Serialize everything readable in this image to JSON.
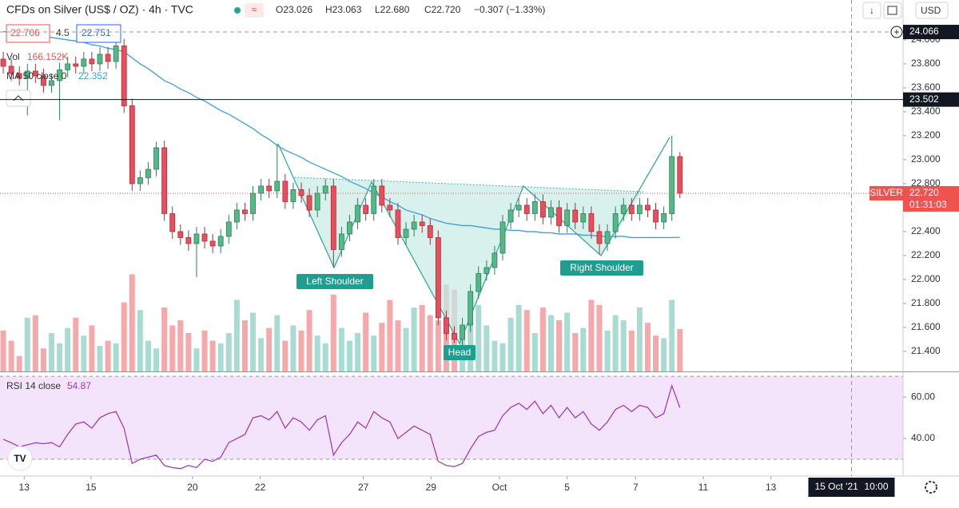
{
  "header": {
    "title": "CFDs on Silver (US$ / OZ) · 4h · TVC",
    "ohlc": [
      "O23.026",
      "H23.063",
      "L22.680",
      "C22.720",
      "−0.307 (−1.33%)"
    ],
    "currency": "USD"
  },
  "overlay": {
    "bid": "22.706",
    "spread": "4.5",
    "ask": "22.751",
    "volume_name": "Vol",
    "volume_readout": "166.152K"
  },
  "annotations": [
    "Left Shoulder",
    "Head",
    "Right Shoulder"
  ],
  "chart_data": [
    {
      "type": "candlestick",
      "up_color": "#53b987",
      "down_color": "#eb4d5c",
      "volume_up_color": "#a8dcd3",
      "volume_down_color": "#f5a9ab",
      "open": [
        23.84,
        23.78,
        23.72,
        23.68,
        23.74,
        23.7,
        23.62,
        23.66,
        23.75,
        23.8,
        23.78,
        23.84,
        23.8,
        23.88,
        23.82,
        23.95,
        23.45,
        22.8,
        22.85,
        22.92,
        23.1,
        22.55,
        22.4,
        22.35,
        22.3,
        22.38,
        22.32,
        22.28,
        22.36,
        22.48,
        22.58,
        22.55,
        22.72,
        22.78,
        22.74,
        22.82,
        22.65,
        22.75,
        22.7,
        22.58,
        22.72,
        22.78,
        22.25,
        22.38,
        22.48,
        22.62,
        22.55,
        22.78,
        22.62,
        22.58,
        22.35,
        22.42,
        22.48,
        22.45,
        22.35,
        21.68,
        21.55,
        21.5,
        21.62,
        21.9,
        22.05,
        22.1,
        22.22,
        22.48,
        22.58,
        22.62,
        22.55,
        22.65,
        22.52,
        22.6,
        22.45,
        22.58,
        22.48,
        22.55,
        22.4,
        22.3,
        22.4,
        22.55,
        22.62,
        22.55,
        22.62,
        22.58,
        22.48,
        22.55,
        23.026
      ],
      "high": [
        23.9,
        23.84,
        23.78,
        23.8,
        23.8,
        23.76,
        23.72,
        23.81,
        23.86,
        23.86,
        23.9,
        23.9,
        23.94,
        23.94,
        24.0,
        24.01,
        23.51,
        22.91,
        22.98,
        23.15,
        23.16,
        22.61,
        22.46,
        22.41,
        22.44,
        22.44,
        22.38,
        22.42,
        22.54,
        22.64,
        22.64,
        22.78,
        22.84,
        22.84,
        23.13,
        22.88,
        22.81,
        22.81,
        22.76,
        22.78,
        22.84,
        22.84,
        22.44,
        22.54,
        22.68,
        22.68,
        22.84,
        22.84,
        22.68,
        22.64,
        22.48,
        22.54,
        22.54,
        22.51,
        22.41,
        21.74,
        21.61,
        21.68,
        21.96,
        22.11,
        22.16,
        22.28,
        22.54,
        22.64,
        22.68,
        22.68,
        22.71,
        22.71,
        22.66,
        22.66,
        22.64,
        22.64,
        22.61,
        22.61,
        22.46,
        22.46,
        22.61,
        22.68,
        22.68,
        22.68,
        22.68,
        22.64,
        22.61,
        23.2,
        23.063
      ],
      "low": [
        23.72,
        23.66,
        23.62,
        23.37,
        23.64,
        23.56,
        23.56,
        23.33,
        23.69,
        23.72,
        23.72,
        23.74,
        23.74,
        23.76,
        23.76,
        23.39,
        22.74,
        22.74,
        22.79,
        22.86,
        22.49,
        22.34,
        22.29,
        22.24,
        22.02,
        22.26,
        22.22,
        22.22,
        22.3,
        22.42,
        22.49,
        22.49,
        22.66,
        22.68,
        22.68,
        22.59,
        22.59,
        22.64,
        22.52,
        22.52,
        22.66,
        22.1,
        22.19,
        22.32,
        22.42,
        22.49,
        22.49,
        22.56,
        22.52,
        22.29,
        22.29,
        22.36,
        22.39,
        22.29,
        21.62,
        21.49,
        21.47,
        21.44,
        21.56,
        21.84,
        21.99,
        22.04,
        22.16,
        22.42,
        22.52,
        22.49,
        22.49,
        22.46,
        22.46,
        22.39,
        22.39,
        22.42,
        22.42,
        22.34,
        22.21,
        22.24,
        22.34,
        22.49,
        22.49,
        22.49,
        22.52,
        22.42,
        22.42,
        22.49,
        22.68
      ],
      "close": [
        23.78,
        23.72,
        23.68,
        23.74,
        23.7,
        23.62,
        23.66,
        23.75,
        23.8,
        23.78,
        23.84,
        23.8,
        23.88,
        23.82,
        23.95,
        23.45,
        22.8,
        22.85,
        22.92,
        23.1,
        22.55,
        22.4,
        22.35,
        22.3,
        22.38,
        22.32,
        22.28,
        22.36,
        22.48,
        22.58,
        22.55,
        22.72,
        22.78,
        22.74,
        22.82,
        22.65,
        22.75,
        22.7,
        22.58,
        22.72,
        22.78,
        22.25,
        22.38,
        22.48,
        22.62,
        22.55,
        22.78,
        22.62,
        22.58,
        22.35,
        22.42,
        22.48,
        22.45,
        22.35,
        21.68,
        21.55,
        21.5,
        21.62,
        21.9,
        22.05,
        22.1,
        22.22,
        22.48,
        22.58,
        22.62,
        22.55,
        22.65,
        22.52,
        22.6,
        22.45,
        22.58,
        22.48,
        22.55,
        22.4,
        22.3,
        22.4,
        22.55,
        22.62,
        22.55,
        22.62,
        22.58,
        22.48,
        22.55,
        23.026,
        22.72
      ],
      "volume": [
        160,
        120,
        60,
        210,
        220,
        90,
        150,
        110,
        170,
        210,
        140,
        180,
        100,
        120,
        110,
        270,
        380,
        240,
        120,
        90,
        250,
        180,
        200,
        150,
        90,
        160,
        120,
        110,
        150,
        280,
        200,
        230,
        130,
        170,
        220,
        120,
        180,
        160,
        240,
        140,
        110,
        300,
        170,
        120,
        150,
        230,
        140,
        190,
        280,
        200,
        170,
        250,
        260,
        220,
        200,
        340,
        320,
        180,
        200,
        260,
        180,
        120,
        110,
        210,
        260,
        240,
        150,
        250,
        220,
        200,
        230,
        150,
        170,
        280,
        260,
        160,
        220,
        200,
        160,
        250,
        190,
        140,
        130,
        280,
        166.152
      ],
      "series": [
        {
          "name": "MA 50 close 0",
          "color": "#3d9fdc",
          "values": [
            24.07,
            24.06,
            24.06,
            24.05,
            24.04,
            24.03,
            24.02,
            24.01,
            24.0,
            23.99,
            23.98,
            23.96,
            23.95,
            23.93,
            23.92,
            23.9,
            23.85,
            23.8,
            23.76,
            23.71,
            23.66,
            23.63,
            23.59,
            23.56,
            23.52,
            23.49,
            23.45,
            23.41,
            23.38,
            23.34,
            23.3,
            23.26,
            23.21,
            23.17,
            23.12,
            23.08,
            23.05,
            23.02,
            22.98,
            22.95,
            22.92,
            22.89,
            22.86,
            22.82,
            22.79,
            22.76,
            22.72,
            22.69,
            22.65,
            22.62,
            22.58,
            22.56,
            22.54,
            22.51,
            22.49,
            22.47,
            22.46,
            22.45,
            22.45,
            22.44,
            22.43,
            22.42,
            22.42,
            22.41,
            22.41,
            22.4,
            22.4,
            22.39,
            22.39,
            22.38,
            22.38,
            22.38,
            22.37,
            22.37,
            22.36,
            22.36,
            22.36,
            22.36,
            22.35,
            22.35,
            22.35,
            22.35,
            22.35,
            22.35,
            22.352
          ]
        }
      ],
      "xlim": [
        -0.4,
        111.7
      ],
      "xticks": [
        {
          "value": 2.6,
          "label": "13"
        },
        {
          "value": 10.9,
          "label": "15"
        },
        {
          "value": 23.5,
          "label": "20"
        },
        {
          "value": 31.9,
          "label": "22"
        },
        {
          "value": 44.7,
          "label": "27"
        },
        {
          "value": 53.1,
          "label": "29"
        },
        {
          "value": 61.6,
          "label": "Oct"
        },
        {
          "value": 70.0,
          "label": "5"
        },
        {
          "value": 78.5,
          "label": "7"
        },
        {
          "value": 86.9,
          "label": "11"
        },
        {
          "value": 95.3,
          "label": "13"
        }
      ],
      "ylim": [
        21.233,
        24.333
      ],
      "yticks": [
        {
          "value": 21.4,
          "label": "21.400"
        },
        {
          "value": 21.6,
          "label": "21.600"
        },
        {
          "value": 21.8,
          "label": "21.800"
        },
        {
          "value": 22.0,
          "label": "22.000"
        },
        {
          "value": 22.2,
          "label": "22.200"
        },
        {
          "value": 22.4,
          "label": "22.400"
        },
        {
          "value": 22.6,
          "label": "22.600"
        },
        {
          "value": 22.8,
          "label": "22.800"
        },
        {
          "value": 23.0,
          "label": "23.000"
        },
        {
          "value": 23.2,
          "label": "23.200"
        },
        {
          "value": 23.4,
          "label": "23.400"
        },
        {
          "value": 23.6,
          "label": "23.600"
        },
        {
          "value": 23.8,
          "label": "23.800"
        },
        {
          "value": 24.0,
          "label": "24.000"
        }
      ],
      "grid": false,
      "price_line": 23.502,
      "last_price": {
        "name": "SILVER",
        "value": 22.72,
        "label": "22.720",
        "countdown": "01:31:03"
      },
      "crosshair": {
        "price": 24.066,
        "x": 105.3,
        "date": "15 Oct '21",
        "time": "10:00"
      }
    },
    {
      "type": "line",
      "name": "RSI 14 close",
      "color": "#9c3fb5",
      "band_color": "#f3e4fb",
      "bands": [
        30,
        70
      ],
      "values": [
        39.6,
        38,
        36,
        37,
        38,
        37.5,
        38,
        36,
        42,
        47,
        48,
        45,
        50,
        52,
        53,
        45,
        28,
        30,
        31,
        32,
        27,
        26,
        25.5,
        27,
        26,
        30,
        29,
        31,
        38,
        40,
        42,
        50,
        51,
        49,
        53,
        45,
        50,
        48,
        44,
        49,
        51,
        32,
        38,
        42,
        48,
        45,
        53,
        50,
        48,
        40,
        43,
        46,
        44,
        42,
        29,
        27,
        26.5,
        28,
        35,
        41,
        43,
        44,
        51,
        55,
        57,
        54,
        58,
        52,
        56,
        50,
        55,
        50,
        53,
        47,
        44,
        48,
        54,
        56,
        53,
        56,
        55,
        50,
        52,
        65.5,
        54.87
      ],
      "ylim": [
        22.3,
        71.2
      ],
      "yticks": [
        {
          "value": 40,
          "label": "40.00"
        },
        {
          "value": 60,
          "label": "60.00"
        }
      ]
    }
  ]
}
